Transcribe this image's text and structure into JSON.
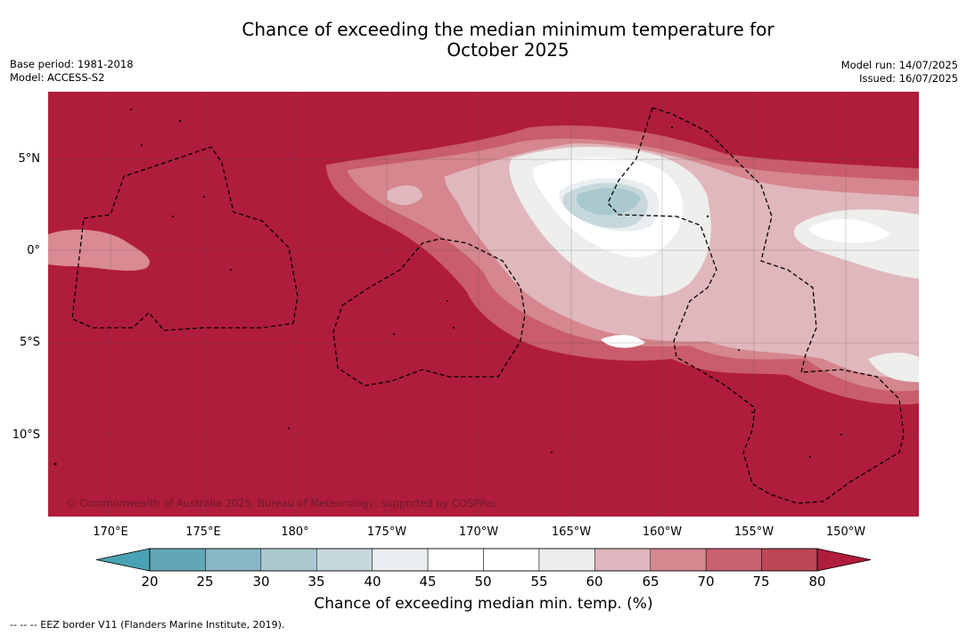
{
  "title": {
    "line1": "Chance of exceeding the median minimum temperature for",
    "line2": "October 2025"
  },
  "meta": {
    "base_period": "Base period: 1981-2018",
    "model": "Model: ACCESS-S2",
    "model_run": "Model run: 14/07/2025",
    "issued": "Issued: 16/07/2025"
  },
  "map": {
    "copyright": "© Commonwealth of Australia 2025, Bureau of Meteorology, supported by COSPPac",
    "lat_labels": [
      "5°N",
      "0°",
      "5°S",
      "10°S"
    ],
    "lon_labels": [
      "170°E",
      "175°E",
      "180°",
      "175°W",
      "170°W",
      "165°W",
      "160°W",
      "155°W",
      "150°W"
    ]
  },
  "colorbar": {
    "label": "Chance of exceeding median min. temp. (%)",
    "ticks": [
      "20",
      "25",
      "30",
      "35",
      "40",
      "45",
      "50",
      "55",
      "60",
      "65",
      "70",
      "75",
      "80"
    ],
    "colors": [
      "#62a7b8",
      "#88b6c4",
      "#a9c9ce",
      "#c7d8dc",
      "#e9eef1",
      "#ffffff",
      "#ffffff",
      "#ececea",
      "#dfb6bd",
      "#d4888f",
      "#c86170",
      "#bc4556"
    ],
    "low_color": "#4aa3b4",
    "high_color": "#b01c3b"
  },
  "legend": {
    "eez": "-- -- -- EEZ border V11 (Flanders Marine Institute, 2019)."
  }
}
